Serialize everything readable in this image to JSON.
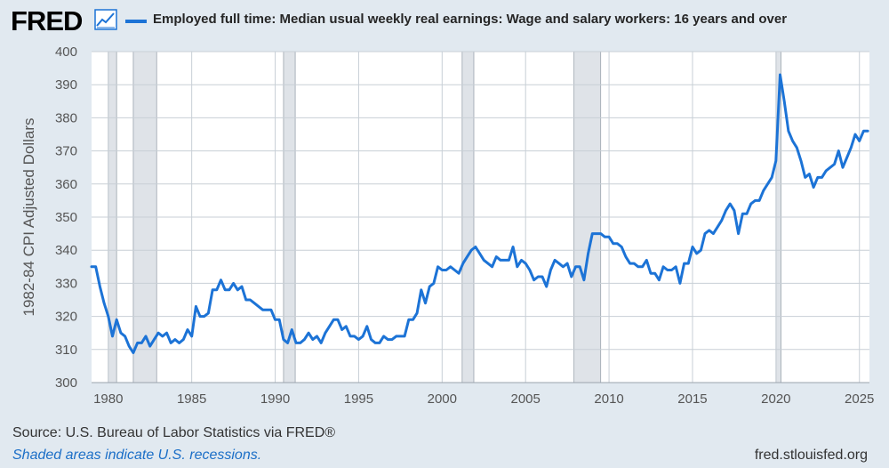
{
  "header": {
    "logo_text": "FRED",
    "logo_icon": "line-chart-icon",
    "series_title": "Employed full time: Median usual weekly real earnings: Wage and salary workers: 16 years and over"
  },
  "footer": {
    "source": "U.S. Bureau of Labor Statistics via FRED®",
    "source_prefix": "Source: ",
    "recession_note": "Shaded areas indicate U.S. recessions.",
    "url": "fred.stlouisfed.org"
  },
  "colors": {
    "series": "#1c73d6",
    "plot_bg": "#ffffff",
    "page_bg": "#e1e9f0",
    "recession": "#dfe3e8",
    "grid": "#c8cfd6"
  },
  "chart_data": {
    "type": "line",
    "title": "Employed full time: Median usual weekly real earnings: Wage and salary workers: 16 years and over",
    "ylabel": "1982-84 CPI Adjusted Dollars",
    "xlabel": "",
    "ylim": [
      300,
      400
    ],
    "xlim": [
      1979.0,
      2025.6
    ],
    "yticks": [
      300,
      310,
      320,
      330,
      340,
      350,
      360,
      370,
      380,
      390,
      400
    ],
    "xticks": [
      1980,
      1985,
      1990,
      1995,
      2000,
      2005,
      2010,
      2015,
      2020,
      2025
    ],
    "grid": true,
    "legend_position": "top-left",
    "recessions": [
      [
        1980.0,
        1980.5
      ],
      [
        1981.5,
        1982.9
      ],
      [
        1990.5,
        1991.2
      ],
      [
        2001.2,
        2001.9
      ],
      [
        2007.9,
        2009.5
      ],
      [
        2020.0,
        2020.3
      ]
    ],
    "series": [
      {
        "name": "Employed full time: Median usual weekly real earnings: Wage and salary workers: 16 years and over",
        "x": [
          1979.0,
          1979.25,
          1979.5,
          1979.75,
          1980.0,
          1980.25,
          1980.5,
          1980.75,
          1981.0,
          1981.25,
          1981.5,
          1981.75,
          1982.0,
          1982.25,
          1982.5,
          1982.75,
          1983.0,
          1983.25,
          1983.5,
          1983.75,
          1984.0,
          1984.25,
          1984.5,
          1984.75,
          1985.0,
          1985.25,
          1985.5,
          1985.75,
          1986.0,
          1986.25,
          1986.5,
          1986.75,
          1987.0,
          1987.25,
          1987.5,
          1987.75,
          1988.0,
          1988.25,
          1988.5,
          1988.75,
          1989.0,
          1989.25,
          1989.5,
          1989.75,
          1990.0,
          1990.25,
          1990.5,
          1990.75,
          1991.0,
          1991.25,
          1991.5,
          1991.75,
          1992.0,
          1992.25,
          1992.5,
          1992.75,
          1993.0,
          1993.25,
          1993.5,
          1993.75,
          1994.0,
          1994.25,
          1994.5,
          1994.75,
          1995.0,
          1995.25,
          1995.5,
          1995.75,
          1996.0,
          1996.25,
          1996.5,
          1996.75,
          1997.0,
          1997.25,
          1997.5,
          1997.75,
          1998.0,
          1998.25,
          1998.5,
          1998.75,
          1999.0,
          1999.25,
          1999.5,
          1999.75,
          2000.0,
          2000.25,
          2000.5,
          2000.75,
          2001.0,
          2001.25,
          2001.5,
          2001.75,
          2002.0,
          2002.25,
          2002.5,
          2002.75,
          2003.0,
          2003.25,
          2003.5,
          2003.75,
          2004.0,
          2004.25,
          2004.5,
          2004.75,
          2005.0,
          2005.25,
          2005.5,
          2005.75,
          2006.0,
          2006.25,
          2006.5,
          2006.75,
          2007.0,
          2007.25,
          2007.5,
          2007.75,
          2008.0,
          2008.25,
          2008.5,
          2008.75,
          2009.0,
          2009.25,
          2009.5,
          2009.75,
          2010.0,
          2010.25,
          2010.5,
          2010.75,
          2011.0,
          2011.25,
          2011.5,
          2011.75,
          2012.0,
          2012.25,
          2012.5,
          2012.75,
          2013.0,
          2013.25,
          2013.5,
          2013.75,
          2014.0,
          2014.25,
          2014.5,
          2014.75,
          2015.0,
          2015.25,
          2015.5,
          2015.75,
          2016.0,
          2016.25,
          2016.5,
          2016.75,
          2017.0,
          2017.25,
          2017.5,
          2017.75,
          2018.0,
          2018.25,
          2018.5,
          2018.75,
          2019.0,
          2019.25,
          2019.5,
          2019.75,
          2020.0,
          2020.25,
          2020.5,
          2020.75,
          2021.0,
          2021.25,
          2021.5,
          2021.75,
          2022.0,
          2022.25,
          2022.5,
          2022.75,
          2023.0,
          2023.25,
          2023.5,
          2023.75,
          2024.0,
          2024.25,
          2024.5,
          2024.75,
          2025.0,
          2025.25,
          2025.5
        ],
        "y": [
          335,
          335,
          329,
          324,
          320,
          314,
          319,
          315,
          314,
          311,
          309,
          312,
          312,
          314,
          311,
          313,
          315,
          314,
          315,
          312,
          313,
          312,
          313,
          316,
          314,
          323,
          320,
          320,
          321,
          328,
          328,
          331,
          328,
          328,
          330,
          328,
          329,
          325,
          325,
          324,
          323,
          322,
          322,
          322,
          319,
          319,
          313,
          312,
          316,
          312,
          312,
          313,
          315,
          313,
          314,
          312,
          315,
          317,
          319,
          319,
          316,
          317,
          314,
          314,
          313,
          314,
          317,
          313,
          312,
          312,
          314,
          313,
          313,
          314,
          314,
          314,
          319,
          319,
          321,
          328,
          324,
          329,
          330,
          335,
          334,
          334,
          335,
          334,
          333,
          336,
          338,
          340,
          341,
          339,
          337,
          336,
          335,
          338,
          337,
          337,
          337,
          341,
          335,
          337,
          336,
          334,
          331,
          332,
          332,
          329,
          334,
          337,
          336,
          335,
          336,
          332,
          335,
          335,
          331,
          339,
          345,
          345,
          345,
          344,
          344,
          342,
          342,
          341,
          338,
          336,
          336,
          335,
          335,
          337,
          333,
          333,
          331,
          335,
          334,
          334,
          335,
          330,
          336,
          336,
          341,
          339,
          340,
          345,
          346,
          345,
          347,
          349,
          352,
          354,
          352,
          345,
          351,
          351,
          354,
          355,
          355,
          358,
          360,
          362,
          367,
          393,
          385,
          376,
          373,
          371,
          367,
          362,
          363,
          359,
          362,
          362,
          364,
          365,
          366,
          370,
          365,
          368,
          371,
          375,
          373,
          376,
          376
        ]
      }
    ]
  }
}
